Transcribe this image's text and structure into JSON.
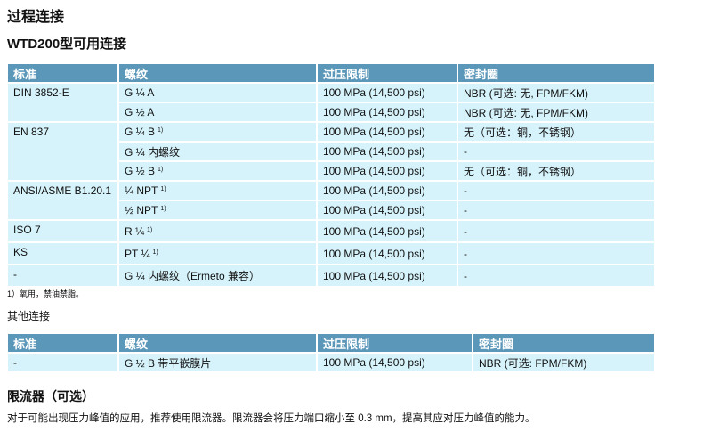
{
  "title": "过程连接",
  "subtitle": "WTD200型可用连接",
  "table1": {
    "headers": [
      "标准",
      "螺纹",
      "过压限制",
      "密封圈"
    ],
    "groups": [
      {
        "standard": "DIN 3852-E",
        "rows": [
          {
            "thread": "G ¼ A",
            "note": "",
            "pressure": "100 MPa (14,500 psi)",
            "seal": "NBR (可选: 无, FPM/FKM)"
          },
          {
            "thread": "G ½ A",
            "note": "",
            "pressure": "100 MPa (14,500 psi)",
            "seal": "NBR (可选: 无, FPM/FKM)"
          }
        ]
      },
      {
        "standard": "EN 837",
        "rows": [
          {
            "thread": "G ¼ B",
            "note": "1)",
            "pressure": "100 MPa (14,500 psi)",
            "seal": "无（可选：铜，不锈钢）"
          },
          {
            "thread": "G ¼ 内螺纹",
            "note": "",
            "pressure": "100 MPa (14,500 psi)",
            "seal": "-"
          },
          {
            "thread": "G ½ B",
            "note": "1)",
            "pressure": "100 MPa (14,500 psi)",
            "seal": "无（可选：铜，不锈钢）"
          }
        ]
      },
      {
        "standard": "ANSI/ASME B1.20.1",
        "rows": [
          {
            "thread": "¼ NPT",
            "note": "1)",
            "pressure": "100 MPa (14,500 psi)",
            "seal": "-"
          },
          {
            "thread": "½ NPT",
            "note": "1)",
            "pressure": "100 MPa (14,500 psi)",
            "seal": "-"
          }
        ]
      },
      {
        "standard": "ISO 7",
        "rows": [
          {
            "thread": "R ¼",
            "note": "1)",
            "pressure": "100 MPa (14,500 psi)",
            "seal": "-"
          }
        ]
      },
      {
        "standard": "KS",
        "rows": [
          {
            "thread": "PT ¼",
            "note": "1)",
            "pressure": "100 MPa (14,500 psi)",
            "seal": "-"
          }
        ]
      },
      {
        "standard": "-",
        "rows": [
          {
            "thread": "G ¼  内螺纹（Ermeto 兼容）",
            "note": "",
            "pressure": "100 MPa (14,500 psi)",
            "seal": "-"
          }
        ]
      }
    ]
  },
  "footnote": "1）氧用，禁油禁脂。",
  "other_label": "其他连接",
  "table2": {
    "headers": [
      "标准",
      "螺纹",
      "过压限制",
      "密封圈"
    ],
    "rows": [
      [
        "-",
        "G ½ B  带平嵌膜片",
        "100 MPa (14,500 psi)",
        "NBR (可选: FPM/FKM)"
      ]
    ]
  },
  "restrictor_title": "限流器（可选）",
  "restrictor_text": "对于可能出现压力峰值的应用，推荐使用限流器。限流器会将压力端口缩小至 0.3 mm，提高其应对压力峰值的能力。",
  "colors": {
    "header": "#5b97b8",
    "cell": "#d6f3fb"
  }
}
